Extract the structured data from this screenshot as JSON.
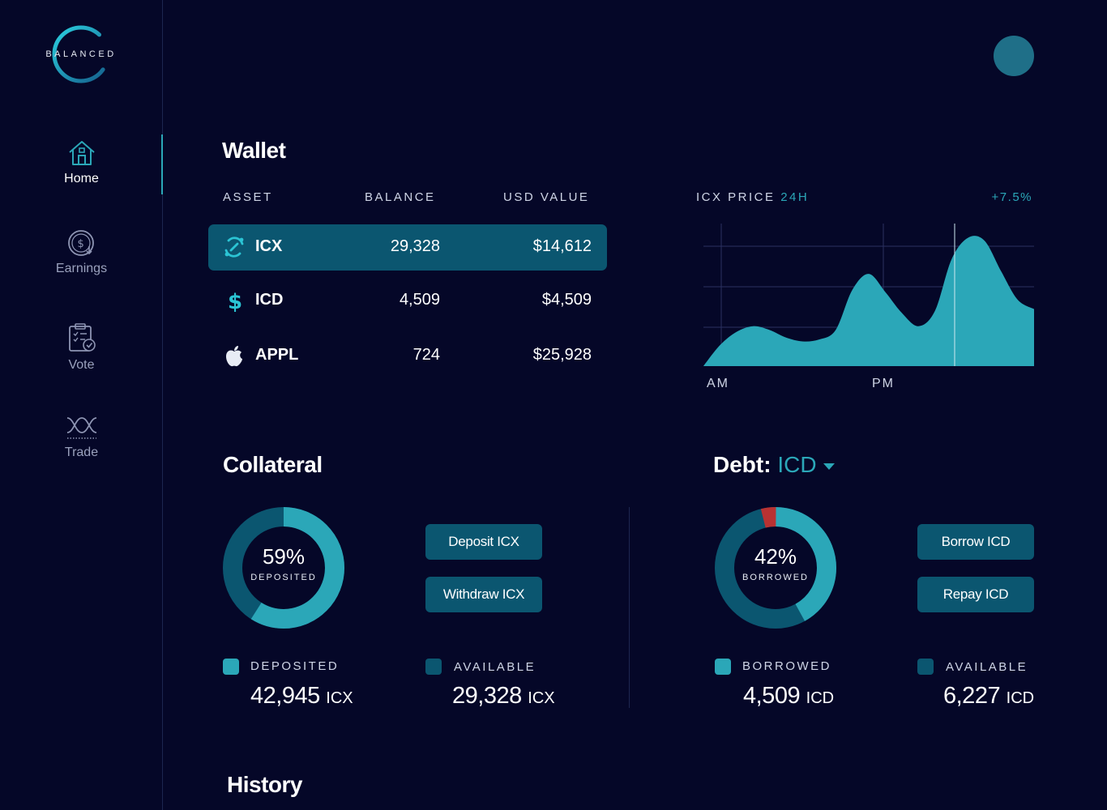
{
  "brand": {
    "name": "BALANCED"
  },
  "nav": {
    "items": [
      {
        "label": "Home",
        "icon": "home-icon",
        "active": true
      },
      {
        "label": "Earnings",
        "icon": "earnings-icon",
        "active": false
      },
      {
        "label": "Vote",
        "icon": "vote-icon",
        "active": false
      },
      {
        "label": "Trade",
        "icon": "trade-icon",
        "active": false
      }
    ]
  },
  "colors": {
    "background": "#050728",
    "accent": "#2ba7b8",
    "accent_dark": "#0b5670",
    "danger": "#b83232"
  },
  "wallet": {
    "title": "Wallet",
    "columns": {
      "asset": "ASSET",
      "balance": "BALANCE",
      "usd": "USD VALUE"
    },
    "rows": [
      {
        "asset": "ICX",
        "icon": "icx-icon",
        "balance": "29,328",
        "usd": "$14,612",
        "selected": true
      },
      {
        "asset": "ICD",
        "icon": "dollar-icon",
        "balance": "4,509",
        "usd": "$4,509",
        "selected": false
      },
      {
        "asset": "APPL",
        "icon": "apple-icon",
        "balance": "724",
        "usd": "$25,928",
        "selected": false
      }
    ]
  },
  "price_chart": {
    "label": "ICX PRICE",
    "period": "24H",
    "change": "+7.5%",
    "x_labels": [
      "AM",
      "PM"
    ]
  },
  "chart_data": {
    "type": "area",
    "x": [
      0,
      1,
      2,
      3,
      4,
      5,
      6,
      7,
      8,
      9,
      10,
      11,
      12,
      13,
      14,
      15,
      16,
      17,
      18,
      19,
      20
    ],
    "values": [
      0,
      22,
      36,
      42,
      38,
      30,
      26,
      28,
      38,
      80,
      97,
      78,
      56,
      42,
      58,
      112,
      135,
      132,
      100,
      70,
      60
    ],
    "xlabel": "",
    "ylabel": "",
    "x_tick_labels": [
      "AM",
      "PM"
    ],
    "ylim": [
      0,
      150
    ],
    "grid": true,
    "color": "#2ba7b8"
  },
  "collateral": {
    "title": "Collateral",
    "percent": "59%",
    "percent_value": 0.59,
    "center_label": "DEPOSITED",
    "buttons": {
      "deposit": "Deposit ICX",
      "withdraw": "Withdraw ICX"
    },
    "legend": [
      {
        "label": "DEPOSITED",
        "value": "42,945",
        "unit": "ICX"
      },
      {
        "label": "AVAILABLE",
        "value": "29,328",
        "unit": "ICX"
      }
    ]
  },
  "debt": {
    "title": "Debt:",
    "currency": "ICD",
    "percent": "42%",
    "percent_value": 0.42,
    "center_label": "BORROWED",
    "buttons": {
      "borrow": "Borrow ICD",
      "repay": "Repay ICD"
    },
    "legend": [
      {
        "label": "BORROWED",
        "value": "4,509",
        "unit": "ICD"
      },
      {
        "label": "AVAILABLE",
        "value": "6,227",
        "unit": "ICD"
      }
    ]
  },
  "history": {
    "title": "History"
  }
}
